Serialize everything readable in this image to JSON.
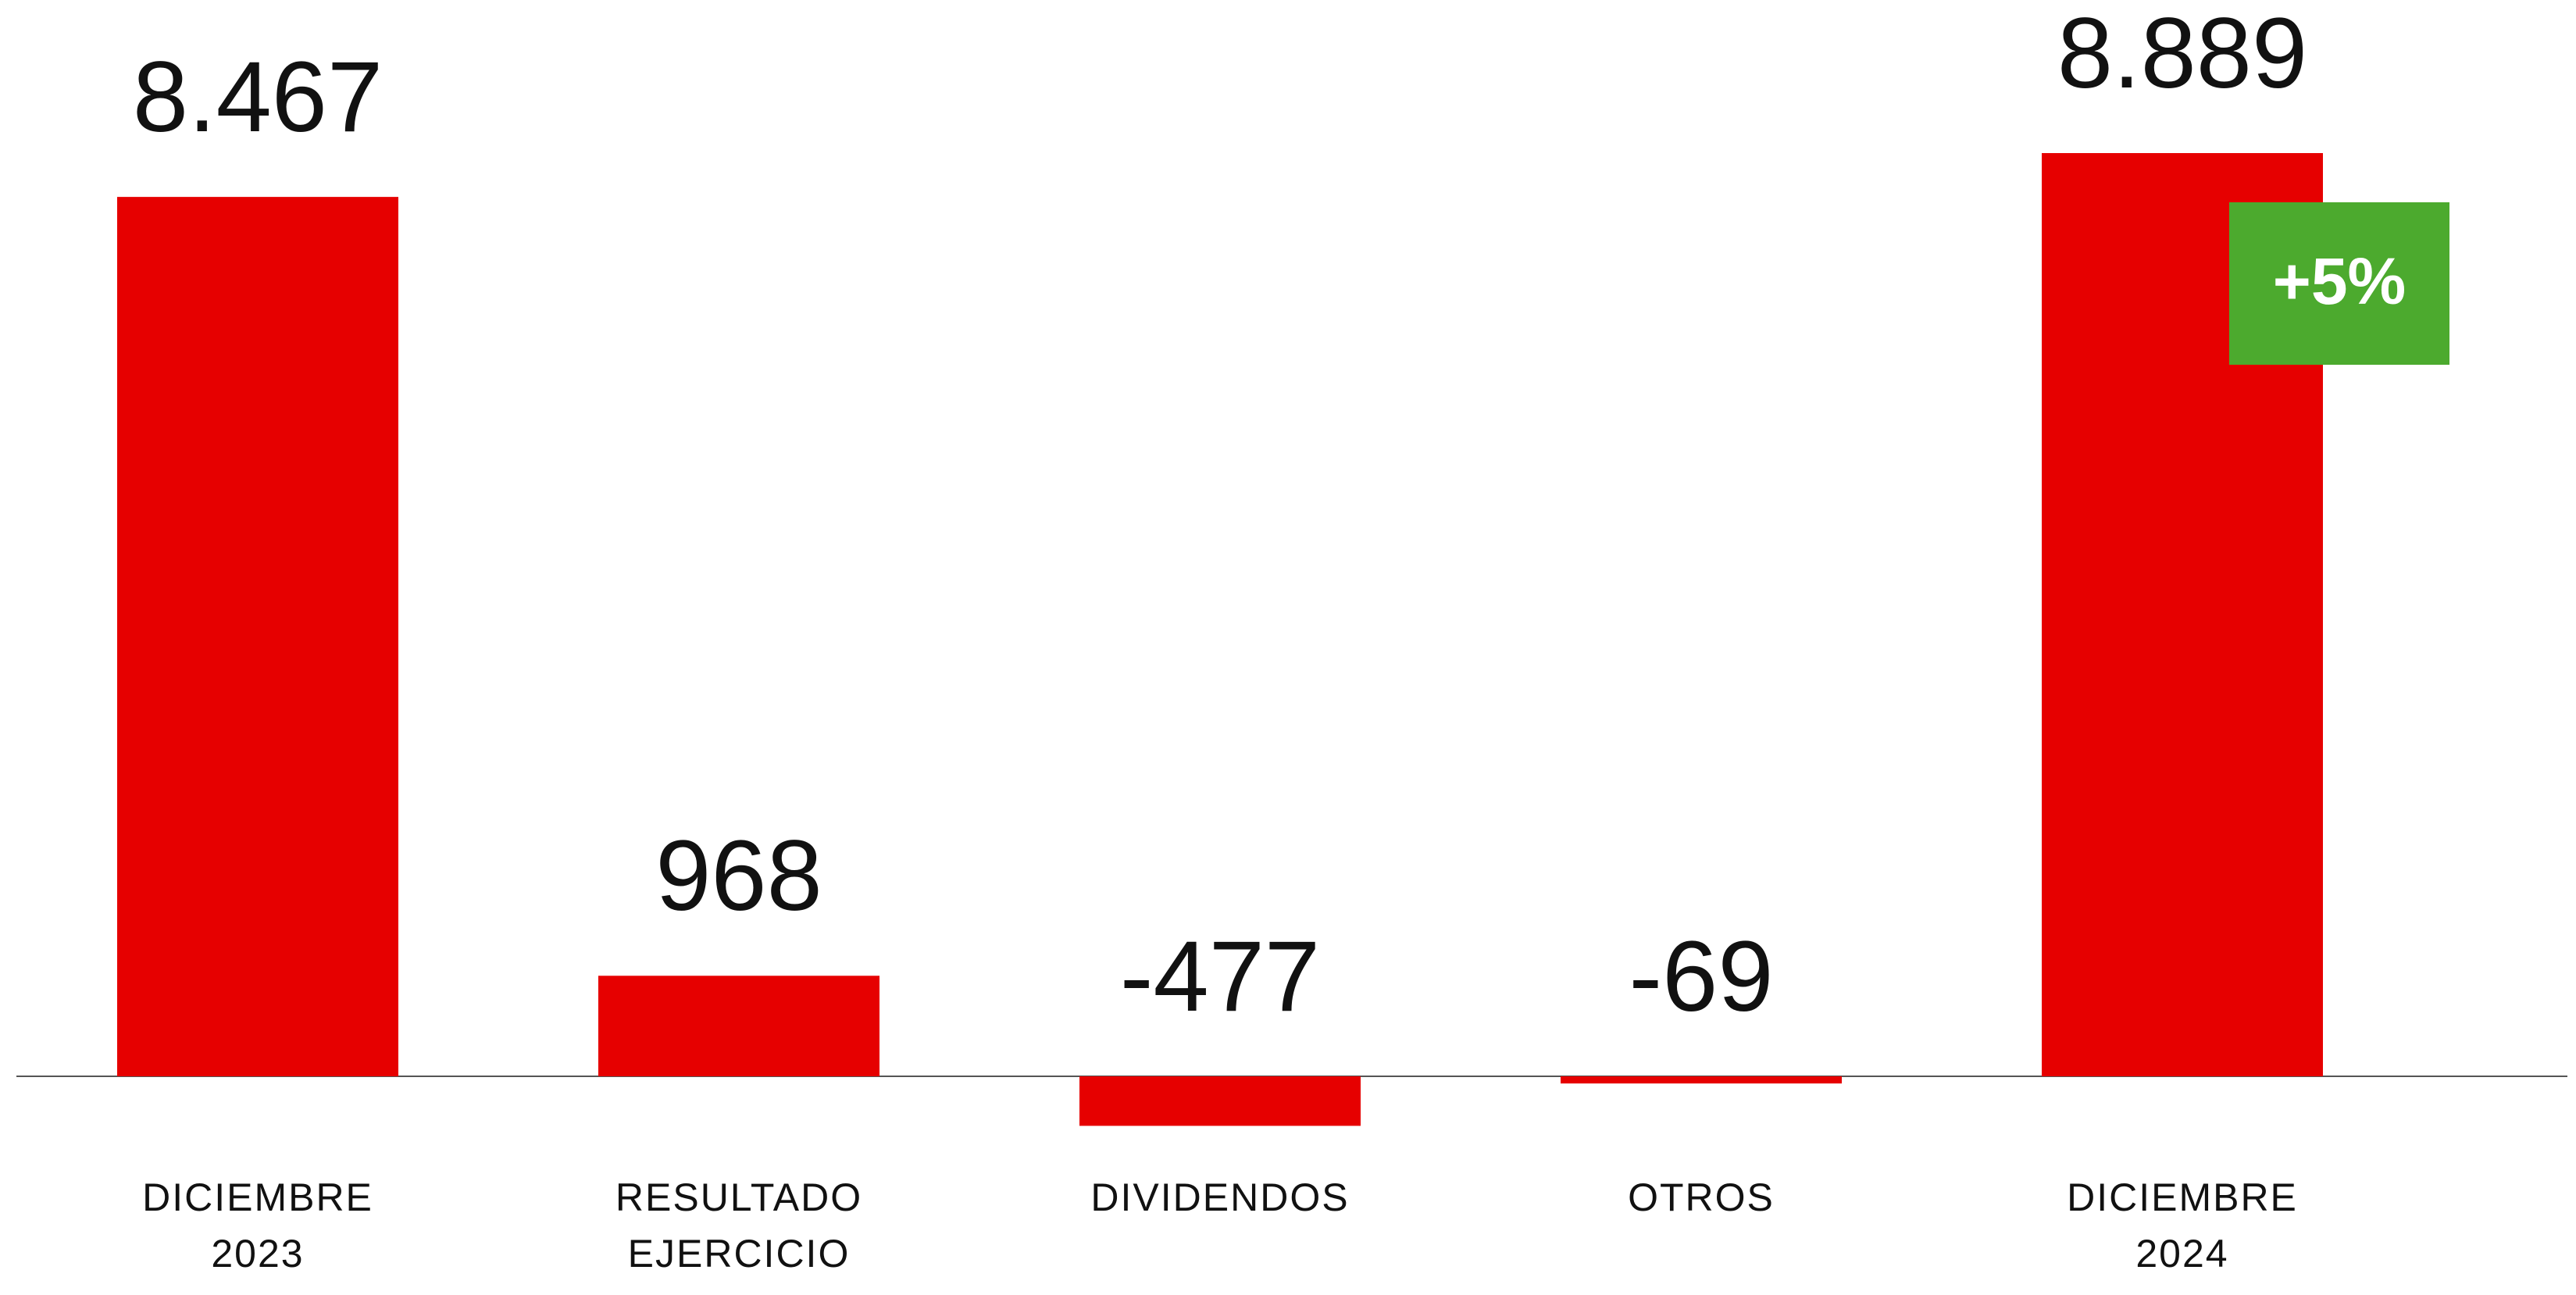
{
  "chart_data": {
    "type": "bar",
    "categories": [
      "DICIEMBRE 2023",
      "RESULTADO EJERCICIO",
      "DIVIDENDOS",
      "OTROS",
      "DICIEMBRE 2024"
    ],
    "values": [
      8467,
      968,
      -477,
      -69,
      8889
    ],
    "value_labels": [
      "8.467",
      "968",
      "-477",
      "-69",
      "8.889"
    ],
    "color": "#e60000",
    "annotation": {
      "text": "+5%",
      "color": "#4caa2e"
    }
  }
}
